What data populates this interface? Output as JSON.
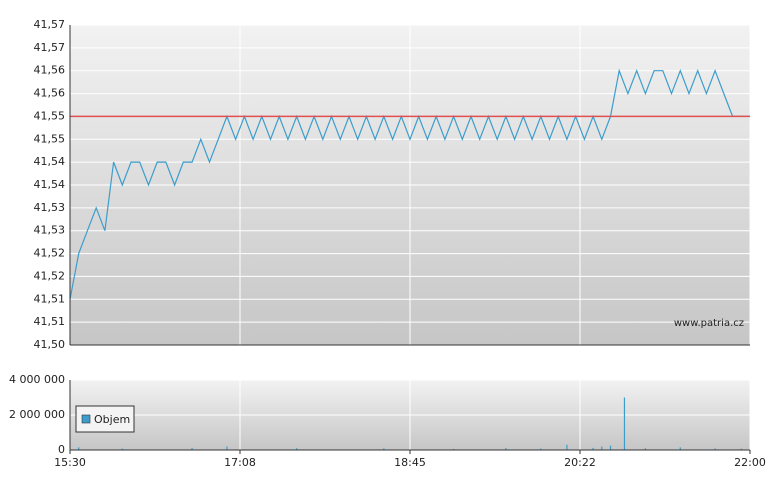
{
  "chart_data": [
    {
      "type": "line",
      "x": [
        930,
        935,
        940,
        945,
        950,
        955,
        960,
        965,
        970,
        975,
        980,
        985,
        990,
        995,
        1000,
        1005,
        1010,
        1015,
        1020,
        1025,
        1030,
        1035,
        1040,
        1045,
        1050,
        1055,
        1060,
        1065,
        1070,
        1075,
        1080,
        1085,
        1090,
        1095,
        1100,
        1105,
        1110,
        1115,
        1120,
        1125,
        1130,
        1135,
        1140,
        1145,
        1150,
        1155,
        1160,
        1165,
        1170,
        1175,
        1180,
        1185,
        1190,
        1195,
        1200,
        1205,
        1210,
        1215,
        1220,
        1225,
        1230,
        1235,
        1240,
        1245,
        1250,
        1255,
        1260,
        1265,
        1270,
        1275,
        1280,
        1285,
        1290,
        1295,
        1300,
        1305,
        1310,
        1315,
        1320
      ],
      "series": [
        {
          "color": "#3c9dcc",
          "values": [
            41.51,
            41.52,
            41.525,
            41.53,
            41.525,
            41.54,
            41.535,
            41.54,
            41.54,
            41.535,
            41.54,
            41.54,
            41.535,
            41.54,
            41.54,
            41.545,
            41.54,
            41.545,
            41.55,
            41.545,
            41.55,
            41.545,
            41.55,
            41.545,
            41.55,
            41.545,
            41.55,
            41.545,
            41.55,
            41.545,
            41.55,
            41.545,
            41.55,
            41.545,
            41.55,
            41.545,
            41.55,
            41.545,
            41.55,
            41.545,
            41.55,
            41.545,
            41.55,
            41.545,
            41.55,
            41.545,
            41.55,
            41.545,
            41.55,
            41.545,
            41.55,
            41.545,
            41.55,
            41.545,
            41.55,
            41.545,
            41.55,
            41.545,
            41.55,
            41.545,
            41.55,
            41.545,
            41.55,
            41.56,
            41.555,
            41.56,
            41.555,
            41.56,
            41.56,
            41.555,
            41.56,
            41.555,
            41.56,
            41.555,
            41.56,
            41.555,
            41.55,
            41.55,
            41.55
          ]
        }
      ],
      "reference_line": {
        "value": 41.55,
        "color": "#e05050"
      },
      "xlim": [
        930,
        1320
      ],
      "ylim": [
        41.5,
        41.57
      ],
      "yticks": [
        {
          "value": 41.57,
          "label": "41,57"
        },
        {
          "value": 41.565,
          "label": "41,57"
        },
        {
          "value": 41.56,
          "label": "41,56"
        },
        {
          "value": 41.555,
          "label": "41,56"
        },
        {
          "value": 41.55,
          "label": "41,55"
        },
        {
          "value": 41.545,
          "label": "41,55"
        },
        {
          "value": 41.54,
          "label": "41,54"
        },
        {
          "value": 41.535,
          "label": "41,54"
        },
        {
          "value": 41.53,
          "label": "41,53"
        },
        {
          "value": 41.525,
          "label": "41,53"
        },
        {
          "value": 41.52,
          "label": "41,52"
        },
        {
          "value": 41.515,
          "label": "41,52"
        },
        {
          "value": 41.51,
          "label": "41,51"
        },
        {
          "value": 41.505,
          "label": "41,51"
        },
        {
          "value": 41.5,
          "label": "41,50"
        }
      ],
      "watermark": "www.patria.cz"
    },
    {
      "type": "bar",
      "x": [
        935,
        960,
        1000,
        1020,
        1060,
        1110,
        1150,
        1180,
        1200,
        1215,
        1230,
        1235,
        1240,
        1248,
        1260,
        1280,
        1300,
        1315
      ],
      "series": [
        {
          "name": "Objem",
          "color": "#3c9dcc",
          "values": [
            150000,
            80000,
            120000,
            200000,
            100000,
            90000,
            60000,
            110000,
            80000,
            300000,
            120000,
            200000,
            250000,
            3000000,
            100000,
            150000,
            90000,
            80000
          ]
        }
      ],
      "xlim": [
        930,
        1320
      ],
      "xticks": [
        {
          "value": 930,
          "label": "15:30"
        },
        {
          "value": 1027.5,
          "label": "17:08"
        },
        {
          "value": 1125,
          "label": "18:45"
        },
        {
          "value": 1222.5,
          "label": "20:22"
        },
        {
          "value": 1320,
          "label": "22:00"
        }
      ],
      "ylim": [
        0,
        4000000
      ],
      "yticks": [
        0,
        {
          "value": 2000000,
          "label": "2 000 000"
        },
        {
          "value": 4000000,
          "label": "4 000 000"
        }
      ]
    }
  ]
}
